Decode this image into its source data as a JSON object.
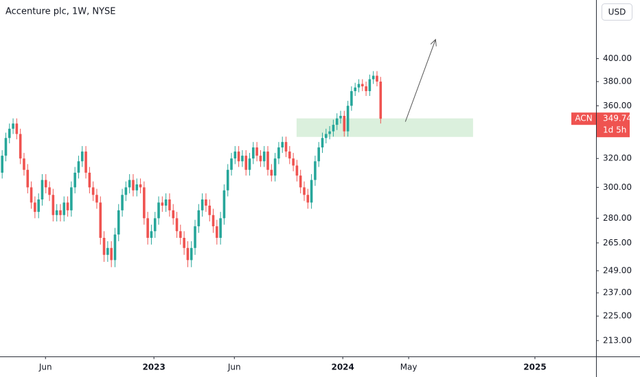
{
  "chart_data": {
    "type": "candlestick",
    "title": "Accenture plc, 1W, NYSE",
    "currency": "USD",
    "symbol": "ACN",
    "countdown": "1d 5h",
    "up_color": "#26a69a",
    "down_color": "#ef5350",
    "log_scale": true,
    "open": [
      310,
      322,
      335,
      342,
      346,
      338,
      320,
      312,
      300,
      290,
      284,
      292,
      305,
      300,
      295,
      282,
      285,
      282,
      290,
      285,
      300,
      310,
      318,
      325,
      310,
      300,
      295,
      290,
      268,
      258,
      262,
      255,
      270,
      285,
      295,
      300,
      305,
      298,
      302,
      300,
      280,
      268,
      272,
      280,
      290,
      288,
      292,
      285,
      280,
      272,
      268,
      262,
      255,
      262,
      275,
      285,
      292,
      288,
      282,
      275,
      268,
      280,
      298,
      312,
      320,
      325,
      318,
      322,
      312,
      320,
      328,
      322,
      318,
      325,
      312,
      308,
      320,
      328,
      332,
      325,
      320,
      315,
      308,
      300,
      295,
      290,
      305,
      318,
      328,
      335,
      338,
      340,
      345,
      350,
      352,
      340,
      360,
      372,
      375,
      378,
      376,
      372,
      382,
      385,
      380
    ],
    "high": [
      326,
      339,
      346,
      350,
      350,
      342,
      324,
      316,
      304,
      294,
      296,
      309,
      309,
      304,
      299,
      289,
      289,
      294,
      294,
      304,
      314,
      322,
      329,
      329,
      314,
      304,
      299,
      294,
      272,
      266,
      266,
      274,
      289,
      299,
      304,
      309,
      309,
      306,
      306,
      304,
      284,
      276,
      284,
      294,
      294,
      296,
      296,
      289,
      284,
      276,
      272,
      266,
      266,
      279,
      289,
      296,
      296,
      292,
      286,
      279,
      284,
      302,
      316,
      324,
      329,
      329,
      326,
      326,
      324,
      332,
      332,
      326,
      329,
      329,
      316,
      324,
      332,
      336,
      336,
      329,
      324,
      319,
      312,
      304,
      299,
      309,
      322,
      332,
      339,
      342,
      344,
      349,
      354,
      356,
      356,
      364,
      376,
      379,
      382,
      382,
      380,
      386,
      389,
      389,
      384
    ],
    "low": [
      306,
      318,
      331,
      338,
      334,
      316,
      308,
      296,
      286,
      280,
      280,
      288,
      296,
      291,
      278,
      278,
      278,
      278,
      281,
      281,
      296,
      306,
      314,
      306,
      296,
      291,
      286,
      264,
      254,
      254,
      251,
      251,
      266,
      281,
      291,
      296,
      294,
      294,
      296,
      276,
      264,
      264,
      268,
      276,
      284,
      284,
      281,
      276,
      268,
      264,
      258,
      251,
      251,
      258,
      271,
      281,
      284,
      278,
      271,
      264,
      264,
      276,
      294,
      308,
      316,
      314,
      314,
      308,
      308,
      316,
      318,
      314,
      314,
      308,
      304,
      304,
      316,
      324,
      321,
      316,
      311,
      304,
      296,
      291,
      286,
      286,
      301,
      314,
      324,
      331,
      334,
      336,
      341,
      346,
      336,
      336,
      356,
      368,
      371,
      372,
      368,
      368,
      378,
      376,
      346
    ],
    "close": [
      322,
      335,
      342,
      346,
      338,
      320,
      312,
      300,
      290,
      284,
      292,
      305,
      300,
      295,
      282,
      285,
      282,
      290,
      285,
      300,
      310,
      318,
      325,
      310,
      300,
      295,
      290,
      268,
      258,
      262,
      255,
      270,
      285,
      295,
      300,
      305,
      298,
      302,
      300,
      280,
      268,
      272,
      280,
      290,
      288,
      292,
      285,
      280,
      272,
      268,
      262,
      255,
      262,
      275,
      285,
      292,
      288,
      282,
      275,
      268,
      280,
      298,
      312,
      320,
      325,
      318,
      322,
      312,
      320,
      328,
      322,
      318,
      325,
      312,
      308,
      320,
      328,
      332,
      325,
      320,
      315,
      308,
      300,
      295,
      290,
      305,
      318,
      328,
      335,
      338,
      340,
      345,
      350,
      352,
      340,
      360,
      372,
      375,
      378,
      376,
      372,
      382,
      385,
      380,
      349.74
    ],
    "xlim": [
      -0.6,
      163.2
    ],
    "xticks": [
      {
        "value": 11.9,
        "label": "Jun"
      },
      {
        "value": 41.7,
        "label": "2023"
      },
      {
        "value": 63.8,
        "label": "Jun"
      },
      {
        "value": 93.6,
        "label": "2024"
      },
      {
        "value": 111.7,
        "label": "May"
      },
      {
        "value": 146.4,
        "label": "2025"
      }
    ],
    "ylim": [
      205.6,
      456
    ],
    "yticks": [
      {
        "value": 400,
        "label": "400.00"
      },
      {
        "value": 380,
        "label": "380.00"
      },
      {
        "value": 360,
        "label": "360.00"
      },
      {
        "value": 320,
        "label": "320.00"
      },
      {
        "value": 300,
        "label": "300.00"
      },
      {
        "value": 280,
        "label": "280.00"
      },
      {
        "value": 265,
        "label": "265.00"
      },
      {
        "value": 249,
        "label": "249.00"
      },
      {
        "value": 237,
        "label": "237.00"
      },
      {
        "value": 225,
        "label": "225.00"
      },
      {
        "value": 213,
        "label": "213.00"
      }
    ],
    "zone": {
      "x": [
        80.9,
        129.4
      ],
      "y": [
        335.8,
        350
      ],
      "color": "#d7eed9"
    },
    "arrow": {
      "x": [
        110.8,
        119.1
      ],
      "y": [
        347.4,
        417.5
      ],
      "color": "#555555"
    }
  }
}
